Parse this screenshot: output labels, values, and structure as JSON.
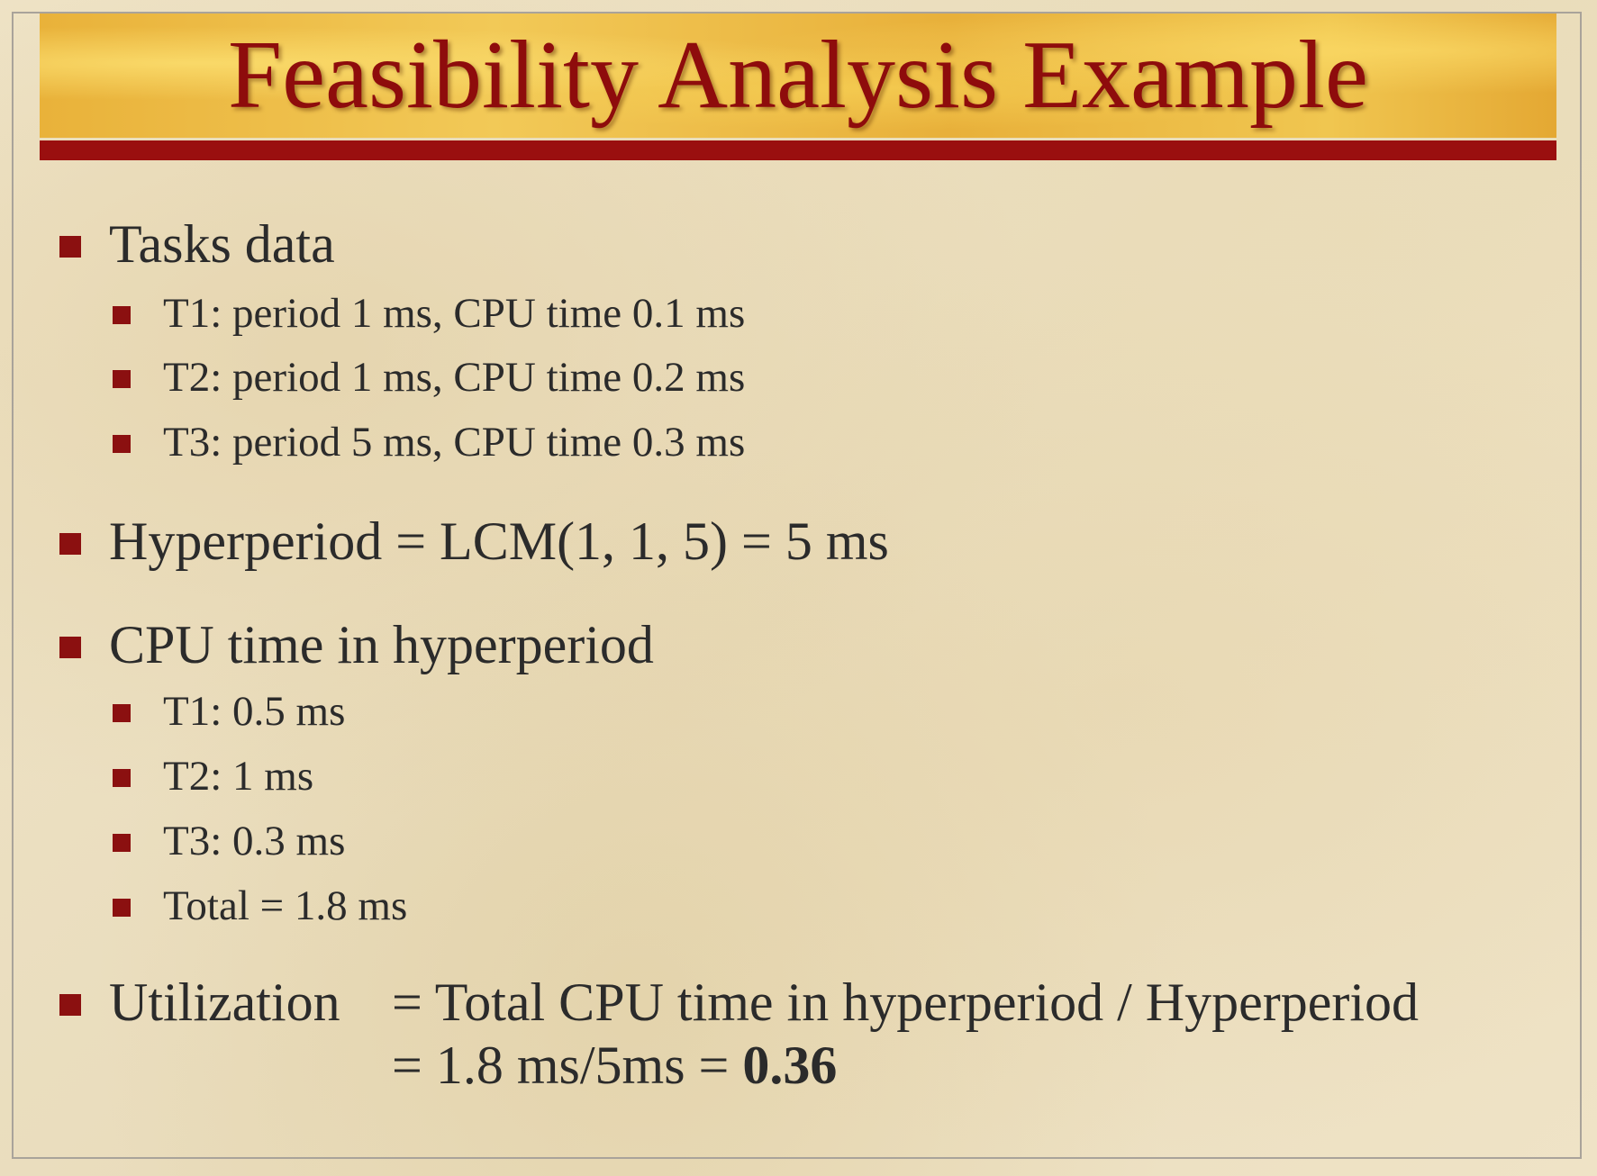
{
  "slide": {
    "title": "Feasibility Analysis Example",
    "tasks": {
      "heading": "Tasks data",
      "items": [
        "T1: period 1 ms, CPU time 0.1 ms",
        "T2: period 1 ms, CPU time 0.2 ms",
        "T3: period 5 ms, CPU time 0.3 ms"
      ]
    },
    "hyperperiod": {
      "text": "Hyperperiod = LCM(1, 1, 5) = 5 ms"
    },
    "cpu_time": {
      "heading": "CPU time in hyperperiod",
      "items": [
        "T1: 0.5 ms",
        "T2: 1 ms",
        "T3: 0.3 ms",
        "Total = 1.8 ms"
      ]
    },
    "utilization": {
      "label": "Utilization",
      "line1": "= Total CPU time in hyperperiod / Hyperperiod",
      "line2_prefix": "= 1.8 ms/5ms = ",
      "line2_result": "0.36"
    }
  },
  "colors": {
    "title_text": "#8e0c0c",
    "title_bar": "#9a0f0f",
    "bullet": "#8b1010",
    "body_text": "#2b2b2b"
  }
}
